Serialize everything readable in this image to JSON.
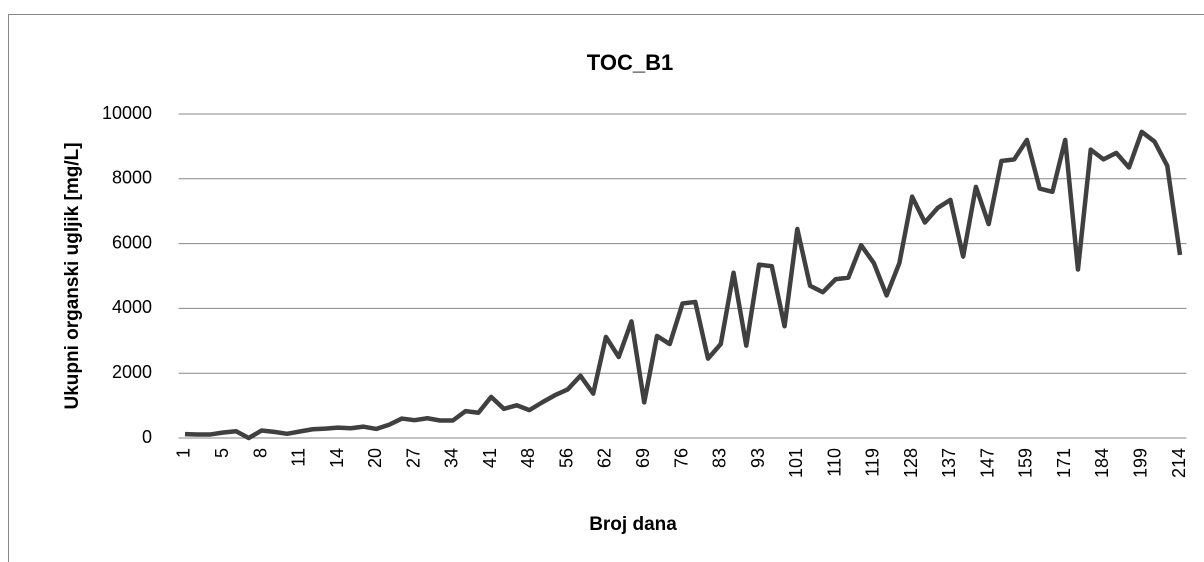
{
  "chart_data": {
    "type": "line",
    "title": "TOC_B1",
    "x_label": "Broj dana",
    "y_label": "Ukupni organski ugljik [mg/L]",
    "categories": [
      "1",
      null,
      null,
      "5",
      null,
      null,
      "8",
      null,
      null,
      "11",
      null,
      null,
      "14",
      null,
      null,
      "20",
      null,
      null,
      "27",
      null,
      null,
      "34",
      null,
      null,
      "41",
      null,
      null,
      "48",
      null,
      null,
      "56",
      null,
      null,
      "62",
      null,
      null,
      "69",
      null,
      null,
      "76",
      null,
      null,
      "83",
      null,
      null,
      "93",
      null,
      null,
      "101",
      null,
      null,
      "110",
      null,
      null,
      "119",
      null,
      null,
      "128",
      null,
      null,
      "137",
      null,
      null,
      "147",
      null,
      null,
      "159",
      null,
      null,
      "171",
      null,
      null,
      "184",
      null,
      null,
      "199",
      null,
      null,
      "214"
    ],
    "series": [
      {
        "name": "TOC_B1",
        "color": "#404040",
        "values": [
          120,
          110,
          110,
          170,
          210,
          0,
          230,
          190,
          130,
          200,
          270,
          290,
          320,
          300,
          350,
          280,
          410,
          600,
          550,
          610,
          540,
          540,
          830,
          780,
          1270,
          900,
          1010,
          860,
          1100,
          1320,
          1500,
          1920,
          1370,
          3120,
          2500,
          3600,
          1100,
          3150,
          2900,
          4150,
          4200,
          2450,
          2900,
          5100,
          2850,
          5350,
          5300,
          3450,
          6450,
          4700,
          4500,
          4900,
          4950,
          5950,
          5400,
          4400,
          5400,
          7450,
          6650,
          7100,
          7350,
          5600,
          7750,
          6600,
          8550,
          8600,
          9200,
          7700,
          7600,
          9200,
          5200,
          8900,
          8600,
          8800,
          8350,
          9450,
          9150,
          8400,
          5650
        ]
      }
    ],
    "ylim": [
      0,
      10000
    ],
    "yticks": [
      0,
      2000,
      4000,
      6000,
      8000,
      10000
    ],
    "grid": true,
    "legend": false
  }
}
